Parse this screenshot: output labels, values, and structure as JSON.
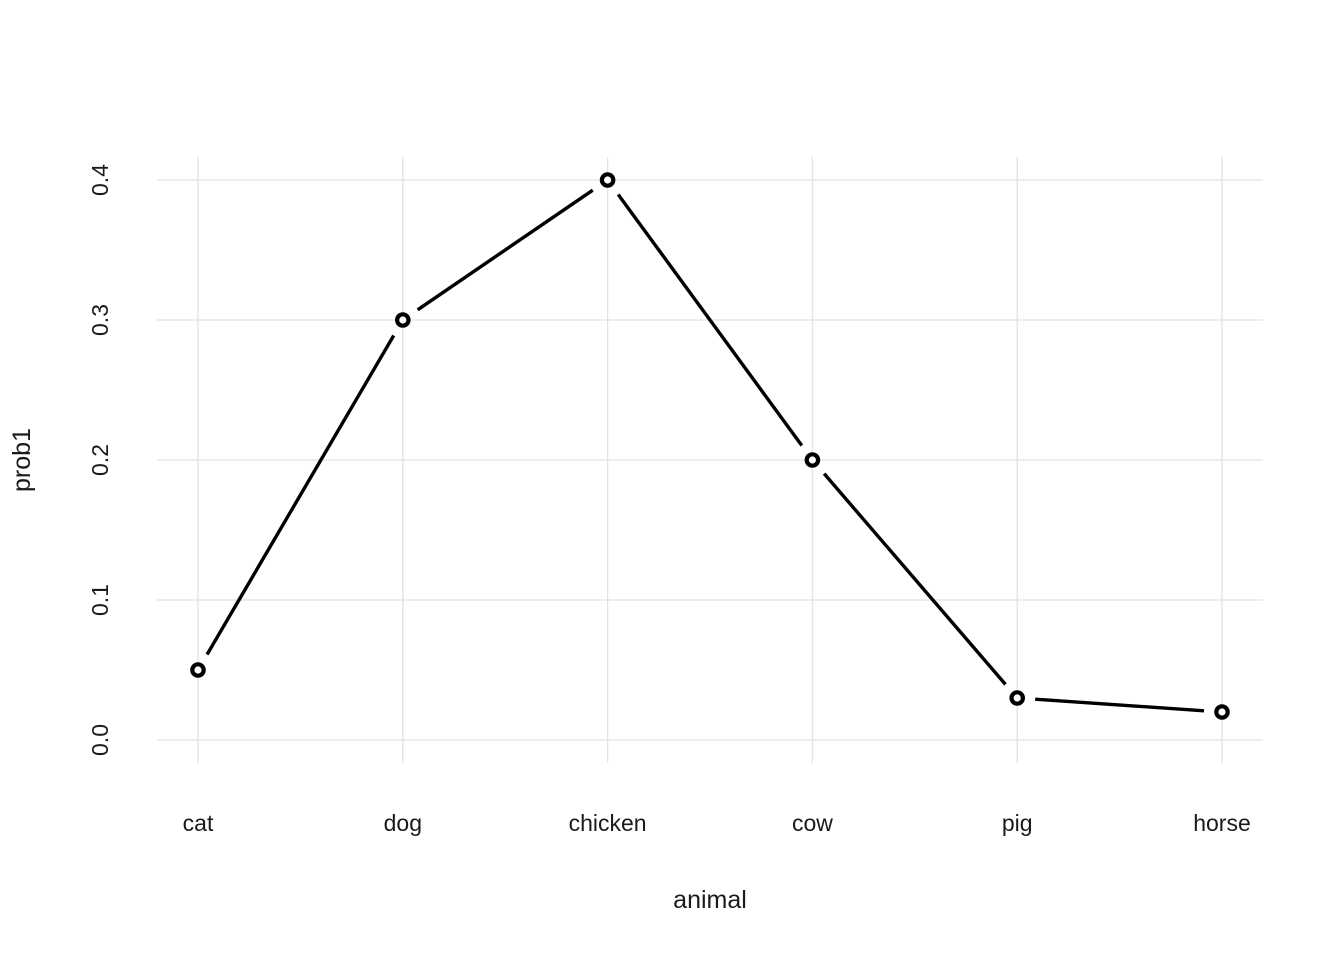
{
  "chart_data": {
    "type": "line",
    "title": "",
    "categories": [
      "cat",
      "dog",
      "chicken",
      "cow",
      "pig",
      "horse"
    ],
    "values": [
      0.05,
      0.3,
      0.4,
      0.2,
      0.03,
      0.02
    ],
    "series_name": "prob1",
    "xlabel": "animal",
    "ylabel": "prob1",
    "ytick_labels": [
      "0.0",
      "0.1",
      "0.2",
      "0.3",
      "0.4"
    ],
    "ytick_values": [
      0.0,
      0.1,
      0.2,
      0.3,
      0.4
    ],
    "ylim": [
      0.0,
      0.4
    ],
    "grid": "major-only",
    "legend": "none",
    "marker": "open-circle",
    "colors": {
      "line": "#000000",
      "marker_stroke": "#000000",
      "marker_fill": "#ffffff",
      "grid": "#e2e2e2",
      "text": "#1a1a1a",
      "background": "#ffffff"
    }
  }
}
